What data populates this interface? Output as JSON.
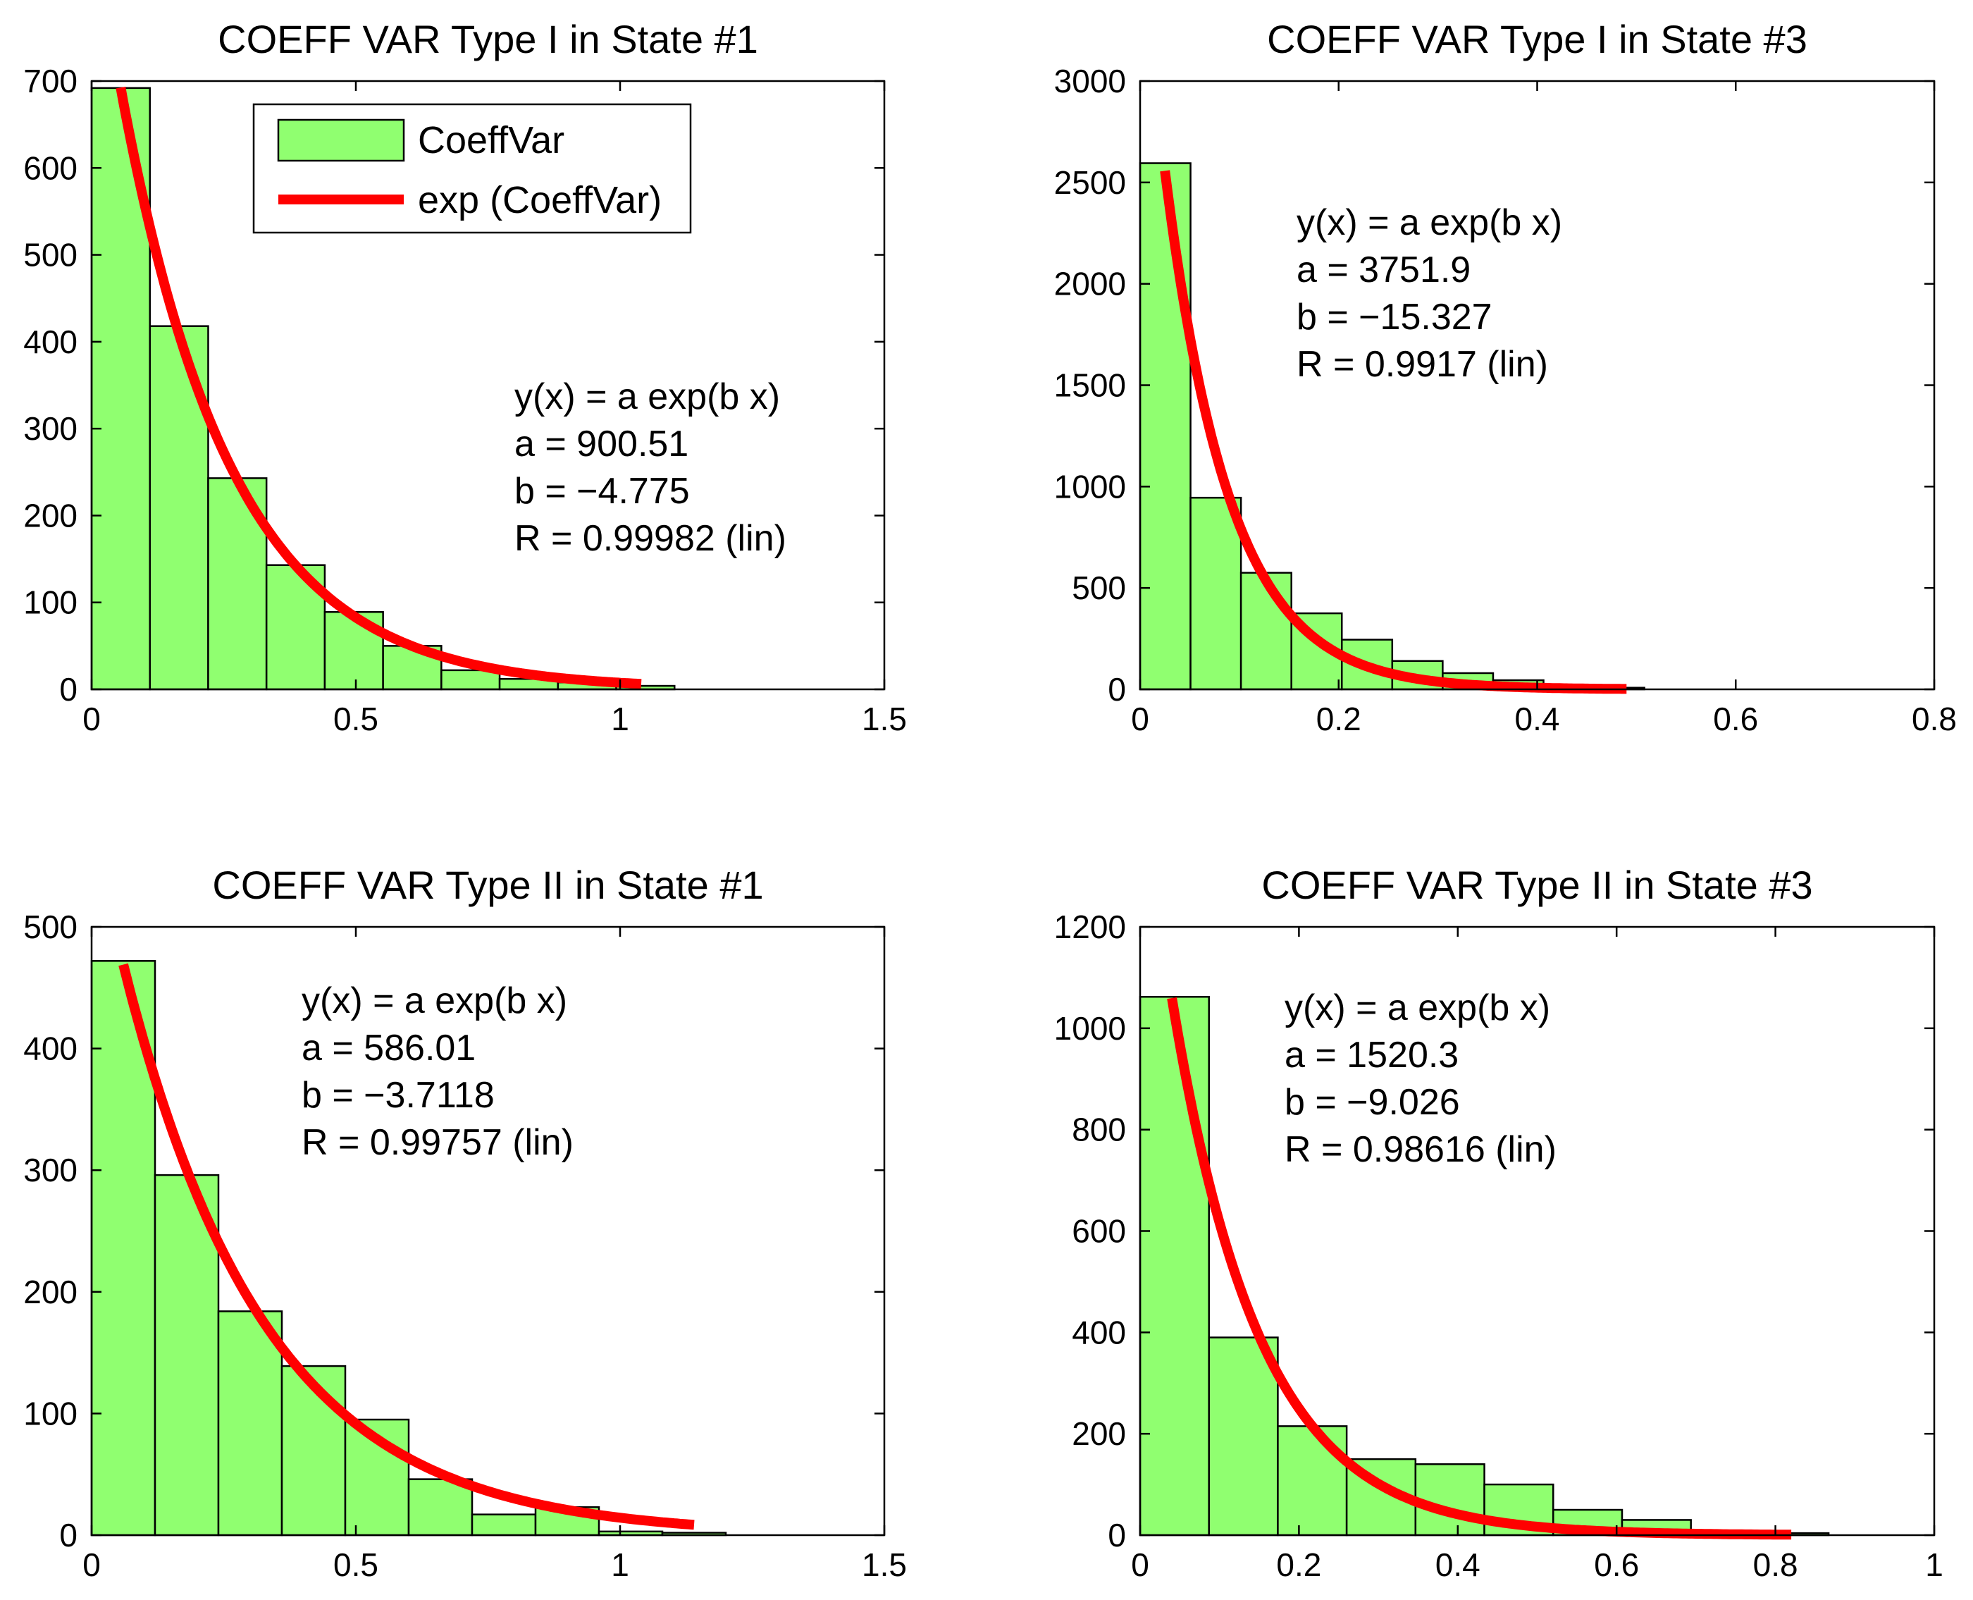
{
  "colors": {
    "bar_fill": "#90ff70",
    "bar_edge": "#000000",
    "fit": "#ff0000",
    "background": "#ffffff"
  },
  "legend": {
    "bar_label": "CoeffVar",
    "fit_label": "exp (CoeffVar)"
  },
  "chart_data": [
    {
      "type": "bar",
      "title": "COEFF VAR Type I in State #1",
      "bin_edges": [
        0,
        0.1103,
        0.2206,
        0.3309,
        0.4412,
        0.5515,
        0.6618,
        0.7721,
        0.8824,
        0.9927,
        1.103
      ],
      "values": [
        692,
        418,
        243,
        143,
        89,
        50,
        22,
        12,
        8,
        4
      ],
      "xlim": [
        0,
        1.5
      ],
      "ylim": [
        0,
        700
      ],
      "xticks": [
        "0",
        "0.5",
        "1",
        "1.5"
      ],
      "xtick_values": [
        0,
        0.5,
        1,
        1.5
      ],
      "yticks": [
        "0",
        "100",
        "200",
        "300",
        "400",
        "500",
        "600",
        "700"
      ],
      "ytick_values": [
        0,
        100,
        200,
        300,
        400,
        500,
        600,
        700
      ],
      "fit": {
        "a": 900.51,
        "b": -4.775,
        "x_start": 0.055,
        "x_end": 1.04
      },
      "annotation": [
        "y(x) = a exp(b x)",
        "a = 900.51",
        "b = −4.775",
        "R = 0.99982  (lin)"
      ],
      "has_legend": true
    },
    {
      "type": "bar",
      "title": "COEFF VAR Type I in State #3",
      "bin_edges": [
        0,
        0.0508,
        0.1016,
        0.1524,
        0.2032,
        0.254,
        0.3048,
        0.3556,
        0.4064,
        0.4572,
        0.508
      ],
      "values": [
        2595,
        945,
        575,
        375,
        245,
        140,
        80,
        45,
        20,
        8
      ],
      "xlim": [
        0,
        0.8
      ],
      "ylim": [
        0,
        3000
      ],
      "xticks": [
        "0",
        "0.2",
        "0.4",
        "0.6",
        "0.8"
      ],
      "xtick_values": [
        0,
        0.2,
        0.4,
        0.6,
        0.8
      ],
      "yticks": [
        "0",
        "500",
        "1000",
        "1500",
        "2000",
        "2500",
        "3000"
      ],
      "ytick_values": [
        0,
        500,
        1000,
        1500,
        2000,
        2500,
        3000
      ],
      "fit": {
        "a": 3751.9,
        "b": -15.327,
        "x_start": 0.025,
        "x_end": 0.49
      },
      "annotation": [
        "y(x) = a exp(b x)",
        "a = 3751.9",
        "b = −15.327",
        "R = 0.9917  (lin)"
      ],
      "has_legend": false
    },
    {
      "type": "bar",
      "title": "COEFF VAR Type II in State #1",
      "bin_edges": [
        0,
        0.12,
        0.24,
        0.36,
        0.48,
        0.6,
        0.72,
        0.84,
        0.96,
        1.08,
        1.2
      ],
      "values": [
        472,
        296,
        184,
        139,
        95,
        46,
        17,
        23,
        3,
        2
      ],
      "xlim": [
        0,
        1.5
      ],
      "ylim": [
        0,
        500
      ],
      "xticks": [
        "0",
        "0.5",
        "1",
        "1.5"
      ],
      "xtick_values": [
        0,
        0.5,
        1,
        1.5
      ],
      "yticks": [
        "0",
        "100",
        "200",
        "300",
        "400",
        "500"
      ],
      "ytick_values": [
        0,
        100,
        200,
        300,
        400,
        500
      ],
      "fit": {
        "a": 586.01,
        "b": -3.7118,
        "x_start": 0.06,
        "x_end": 1.14
      },
      "annotation": [
        "y(x) = a exp(b x)",
        "a = 586.01",
        "b = −3.7118",
        "R = 0.99757  (lin)"
      ],
      "has_legend": false
    },
    {
      "type": "bar",
      "title": "COEFF VAR Type II in State #3",
      "bin_edges": [
        0,
        0.0867,
        0.1734,
        0.2601,
        0.3468,
        0.4335,
        0.5202,
        0.6069,
        0.6936,
        0.7803,
        0.867
      ],
      "values": [
        1062,
        390,
        215,
        150,
        140,
        100,
        50,
        30,
        8,
        4
      ],
      "xlim": [
        0,
        1
      ],
      "ylim": [
        0,
        1200
      ],
      "xticks": [
        "0",
        "0.2",
        "0.4",
        "0.6",
        "0.8",
        "1"
      ],
      "xtick_values": [
        0,
        0.2,
        0.4,
        0.6,
        0.8,
        1
      ],
      "yticks": [
        "0",
        "200",
        "400",
        "600",
        "800",
        "1000",
        "1200"
      ],
      "ytick_values": [
        0,
        200,
        400,
        600,
        800,
        1000,
        1200
      ],
      "fit": {
        "a": 1520.3,
        "b": -9.026,
        "x_start": 0.04,
        "x_end": 0.82
      },
      "annotation": [
        "y(x) = a exp(b x)",
        "a = 1520.3",
        "b = −9.026",
        "R = 0.98616  (lin)"
      ],
      "has_legend": false
    }
  ]
}
